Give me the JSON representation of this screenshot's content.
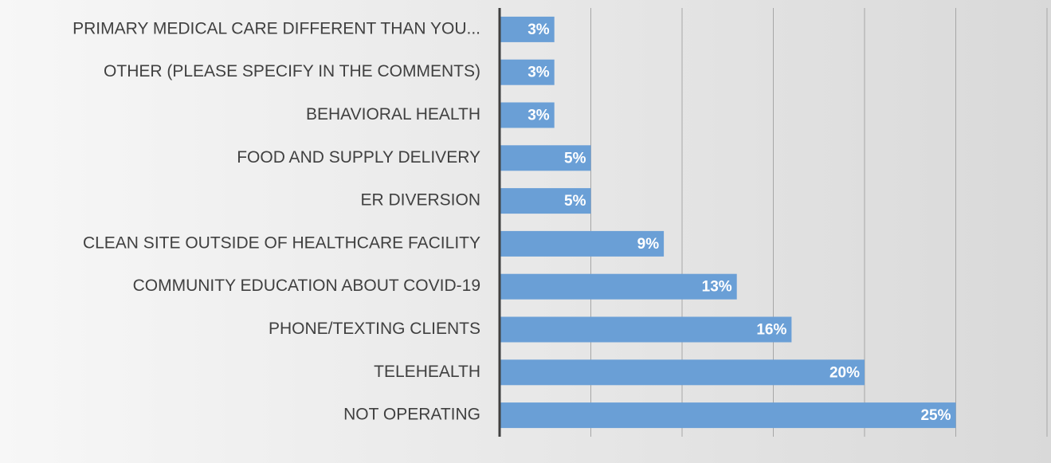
{
  "chart_data": {
    "type": "bar",
    "orientation": "horizontal",
    "categories": [
      "PRIMARY MEDICAL CARE DIFFERENT THAN YOU...",
      "OTHER (PLEASE SPECIFY IN THE COMMENTS)",
      "BEHAVIORAL HEALTH",
      "FOOD AND SUPPLY DELIVERY",
      "ER DIVERSION",
      "CLEAN SITE OUTSIDE OF HEALTHCARE FACILITY",
      "COMMUNITY EDUCATION ABOUT COVID-19",
      "PHONE/TEXTING CLIENTS",
      "TELEHEALTH",
      "NOT OPERATING"
    ],
    "values": [
      3,
      3,
      3,
      5,
      5,
      9,
      13,
      16,
      20,
      25
    ],
    "value_labels": [
      "3%",
      "3%",
      "3%",
      "5%",
      "5%",
      "9%",
      "13%",
      "16%",
      "20%",
      "25%"
    ],
    "color": "#6a9fd6",
    "xlim": [
      0,
      30
    ],
    "xticks": [
      0,
      5,
      10,
      15,
      20,
      25,
      30
    ],
    "grid": true
  }
}
